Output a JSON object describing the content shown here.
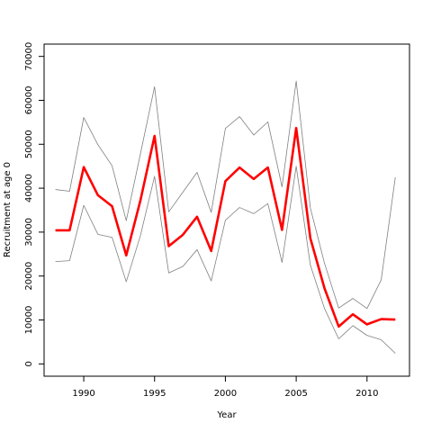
{
  "chart_data": {
    "type": "line",
    "title": "",
    "xlabel": "Year",
    "ylabel": "Recruitment at age 0",
    "xlim": [
      1987.2,
      2013.0
    ],
    "ylim": [
      -2800,
      72800
    ],
    "xticks": [
      1990,
      1995,
      2000,
      2005,
      2010
    ],
    "yticks": [
      0,
      10000,
      20000,
      30000,
      40000,
      50000,
      60000,
      70000
    ],
    "grid": false,
    "legend": "none",
    "x": [
      1988,
      1989,
      1990,
      1991,
      1992,
      1993,
      1994,
      1995,
      1996,
      1997,
      1998,
      1999,
      2000,
      2001,
      2002,
      2003,
      2004,
      2005,
      2006,
      2007,
      2008,
      2009,
      2010,
      2011,
      2012
    ],
    "series": [
      {
        "role": "estimate",
        "color": "#ff0000",
        "values": [
          30400,
          30400,
          44800,
          38400,
          35900,
          24700,
          37200,
          51900,
          26800,
          29400,
          33500,
          25700,
          41600,
          44700,
          42100,
          44700,
          30500,
          53700,
          28600,
          17200,
          8500,
          11300,
          9000,
          10200,
          10100
        ]
      },
      {
        "role": "upper bound",
        "color": "#808080",
        "values": [
          39700,
          39300,
          56100,
          49900,
          45100,
          32600,
          47800,
          63100,
          34600,
          39100,
          43600,
          34500,
          53600,
          56300,
          52100,
          55100,
          40300,
          64400,
          35500,
          22900,
          12700,
          14900,
          12600,
          19100,
          42500
        ]
      },
      {
        "role": "lower bound",
        "color": "#808080",
        "values": [
          23300,
          23500,
          36100,
          29500,
          28800,
          18700,
          29200,
          42700,
          20700,
          22200,
          26000,
          18900,
          32700,
          35600,
          34200,
          36500,
          23100,
          45000,
          22500,
          12600,
          5700,
          8700,
          6500,
          5500,
          2400
        ]
      }
    ]
  }
}
